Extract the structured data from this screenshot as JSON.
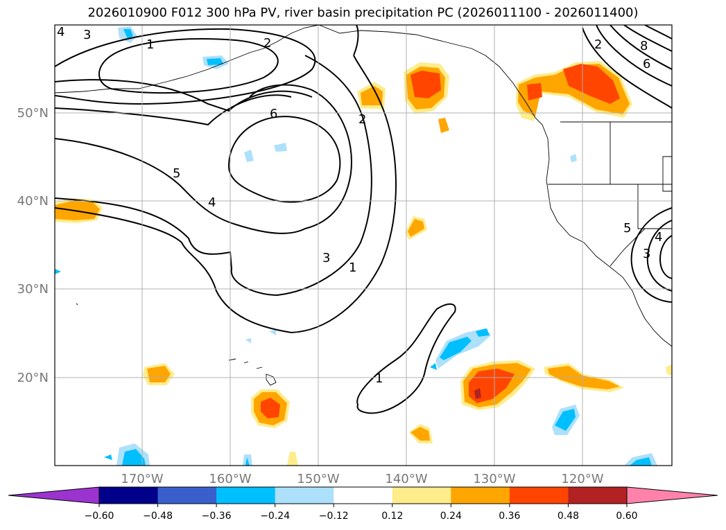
{
  "title": "2026010900 F012 300 hPa PV, river basin precipitation PC (2026011100 - 2026011400)",
  "lat_labels": [
    "50°N",
    "40°N",
    "30°N",
    "20°N"
  ],
  "lon_labels": [
    "170°W",
    "160°W",
    "150°W",
    "140°W",
    "130°W",
    "120°W"
  ],
  "colorbar": {
    "ticks": [
      "−0.60",
      "−0.48",
      "−0.36",
      "−0.24",
      "−0.12",
      "0.12",
      "0.24",
      "0.36",
      "0.48",
      "0.60"
    ],
    "colors": [
      "#9b34cf",
      "#00008b",
      "#3a5fcd",
      "#00bfff",
      "#ade0fb",
      "#ffffff",
      "#ffec8b",
      "#ffa500",
      "#ff4500",
      "#b22222",
      "#ff82ab"
    ]
  },
  "pv_contour_labels": [
    "1",
    "2",
    "3",
    "4",
    "5",
    "6",
    "1",
    "2",
    "3",
    "4",
    "1",
    "2",
    "3",
    "4",
    "5",
    "6",
    "8"
  ],
  "colors": {
    "gridline": "#b0b0b0",
    "coast": "#000000",
    "pv_contour": "#000000"
  }
}
